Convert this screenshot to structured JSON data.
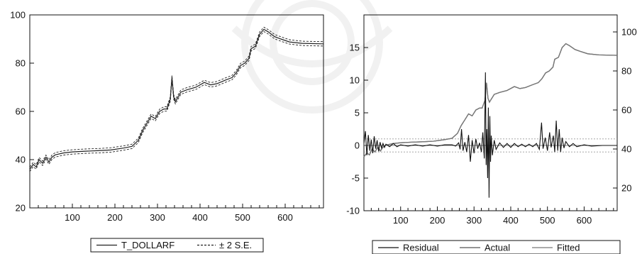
{
  "chart_data": [
    {
      "type": "line",
      "xlim": [
        0,
        690
      ],
      "ylim": [
        20,
        100
      ],
      "x_ticks": [
        100,
        200,
        300,
        400,
        500,
        600
      ],
      "y_ticks": [
        20,
        40,
        60,
        80,
        100
      ],
      "legend_position": "bottom-center",
      "series": [
        {
          "name": "T_DOLLARF",
          "style": "solid",
          "color": "#222222",
          "points": [
            [
              0,
              36
            ],
            [
              8,
              38
            ],
            [
              15,
              37
            ],
            [
              22,
              40
            ],
            [
              30,
              38.5
            ],
            [
              38,
              41
            ],
            [
              45,
              39
            ],
            [
              52,
              41
            ],
            [
              60,
              42
            ],
            [
              80,
              42.8
            ],
            [
              100,
              43.2
            ],
            [
              130,
              43.5
            ],
            [
              160,
              43.7
            ],
            [
              190,
              44
            ],
            [
              220,
              44.8
            ],
            [
              240,
              45.5
            ],
            [
              255,
              48
            ],
            [
              265,
              52
            ],
            [
              275,
              55
            ],
            [
              285,
              58
            ],
            [
              295,
              57
            ],
            [
              305,
              60
            ],
            [
              315,
              61
            ],
            [
              322,
              61
            ],
            [
              330,
              65
            ],
            [
              334,
              74
            ],
            [
              338,
              66
            ],
            [
              342,
              64
            ],
            [
              355,
              68
            ],
            [
              370,
              69
            ],
            [
              390,
              70
            ],
            [
              410,
              72
            ],
            [
              425,
              71
            ],
            [
              440,
              71.5
            ],
            [
              460,
              73
            ],
            [
              475,
              74
            ],
            [
              485,
              76
            ],
            [
              495,
              79
            ],
            [
              505,
              80
            ],
            [
              515,
              82
            ],
            [
              520,
              86
            ],
            [
              530,
              87
            ],
            [
              540,
              92
            ],
            [
              550,
              94
            ],
            [
              560,
              93
            ],
            [
              575,
              91
            ],
            [
              590,
              90
            ],
            [
              610,
              88.8
            ],
            [
              640,
              88.2
            ],
            [
              690,
              88
            ]
          ]
        },
        {
          "name": "± 2 S.E.",
          "style": "dashed",
          "color": "#222222",
          "band": 0.9
        }
      ],
      "legend": [
        "T_DOLLARF",
        "± 2 S.E."
      ]
    },
    {
      "type": "line",
      "xlim": [
        0,
        690
      ],
      "left_axis": {
        "ylim": [
          -10,
          20
        ],
        "ticks": [
          -10,
          -5,
          0,
          5,
          10,
          15
        ]
      },
      "right_axis": {
        "ylim": [
          0,
          100
        ],
        "ticks": [
          20,
          40,
          60,
          80,
          100
        ]
      },
      "x_ticks": [
        100,
        200,
        300,
        400,
        500,
        600
      ],
      "legend_position": "bottom-center",
      "reference_lines_left": [
        0,
        1,
        -1
      ],
      "series": [
        {
          "name": "Actual",
          "axis": "right",
          "color": "#555555",
          "points": [
            [
              0,
              36
            ],
            [
              8,
              38
            ],
            [
              15,
              37
            ],
            [
              22,
              40
            ],
            [
              30,
              38.5
            ],
            [
              38,
              41
            ],
            [
              45,
              39
            ],
            [
              52,
              41
            ],
            [
              60,
              42
            ],
            [
              80,
              42.8
            ],
            [
              100,
              43.2
            ],
            [
              130,
              43.5
            ],
            [
              160,
              43.7
            ],
            [
              190,
              44
            ],
            [
              220,
              44.8
            ],
            [
              240,
              45.5
            ],
            [
              255,
              48
            ],
            [
              265,
              52
            ],
            [
              275,
              55
            ],
            [
              285,
              58
            ],
            [
              295,
              57
            ],
            [
              305,
              60
            ],
            [
              315,
              61
            ],
            [
              322,
              61
            ],
            [
              330,
              65
            ],
            [
              334,
              74
            ],
            [
              338,
              66
            ],
            [
              342,
              64
            ],
            [
              355,
              68
            ],
            [
              370,
              69
            ],
            [
              390,
              70
            ],
            [
              410,
              72
            ],
            [
              425,
              71
            ],
            [
              440,
              71.5
            ],
            [
              460,
              73
            ],
            [
              475,
              74
            ],
            [
              485,
              76
            ],
            [
              495,
              79
            ],
            [
              505,
              80
            ],
            [
              515,
              82
            ],
            [
              520,
              86
            ],
            [
              530,
              87
            ],
            [
              540,
              92
            ],
            [
              550,
              94
            ],
            [
              560,
              93
            ],
            [
              575,
              91
            ],
            [
              590,
              90
            ],
            [
              610,
              88.8
            ],
            [
              640,
              88.2
            ],
            [
              690,
              88
            ]
          ]
        },
        {
          "name": "Fitted",
          "axis": "right",
          "color": "#777777",
          "points": [
            [
              0,
              36
            ],
            [
              8,
              38
            ],
            [
              15,
              37
            ],
            [
              22,
              40
            ],
            [
              30,
              38.5
            ],
            [
              38,
              41
            ],
            [
              45,
              39
            ],
            [
              52,
              41
            ],
            [
              60,
              42
            ],
            [
              80,
              42.8
            ],
            [
              100,
              43.2
            ],
            [
              130,
              43.5
            ],
            [
              160,
              43.7
            ],
            [
              190,
              44
            ],
            [
              220,
              44.8
            ],
            [
              240,
              45.5
            ],
            [
              255,
              48
            ],
            [
              265,
              52
            ],
            [
              275,
              55
            ],
            [
              285,
              58
            ],
            [
              295,
              57
            ],
            [
              305,
              60
            ],
            [
              315,
              61
            ],
            [
              322,
              61
            ],
            [
              330,
              65
            ],
            [
              334,
              74
            ],
            [
              338,
              66
            ],
            [
              342,
              64
            ],
            [
              355,
              68
            ],
            [
              370,
              69
            ],
            [
              390,
              70
            ],
            [
              410,
              72
            ],
            [
              425,
              71
            ],
            [
              440,
              71.5
            ],
            [
              460,
              73
            ],
            [
              475,
              74
            ],
            [
              485,
              76
            ],
            [
              495,
              79
            ],
            [
              505,
              80
            ],
            [
              515,
              82
            ],
            [
              520,
              86
            ],
            [
              530,
              87
            ],
            [
              540,
              92
            ],
            [
              550,
              94
            ],
            [
              560,
              93
            ],
            [
              575,
              91
            ],
            [
              590,
              90
            ],
            [
              610,
              88.8
            ],
            [
              640,
              88.2
            ],
            [
              690,
              88
            ]
          ]
        },
        {
          "name": "Residual",
          "axis": "left",
          "color": "#111111",
          "points": [
            [
              0,
              0.3
            ],
            [
              4,
              2.2
            ],
            [
              8,
              -1.5
            ],
            [
              12,
              1.6
            ],
            [
              16,
              -0.8
            ],
            [
              20,
              0.9
            ],
            [
              24,
              -1.2
            ],
            [
              28,
              1.4
            ],
            [
              32,
              -0.5
            ],
            [
              36,
              0.8
            ],
            [
              40,
              -0.9
            ],
            [
              44,
              0.5
            ],
            [
              48,
              -0.4
            ],
            [
              52,
              0.3
            ],
            [
              56,
              -0.3
            ],
            [
              60,
              0.2
            ],
            [
              70,
              -0.2
            ],
            [
              80,
              0.3
            ],
            [
              90,
              -0.2
            ],
            [
              100,
              0.1
            ],
            [
              120,
              -0.1
            ],
            [
              140,
              0.1
            ],
            [
              160,
              -0.1
            ],
            [
              180,
              0.1
            ],
            [
              200,
              -0.1
            ],
            [
              220,
              0.1
            ],
            [
              240,
              0.1
            ],
            [
              250,
              -0.1
            ],
            [
              258,
              0.4
            ],
            [
              262,
              -0.6
            ],
            [
              266,
              2.5
            ],
            [
              270,
              -0.8
            ],
            [
              275,
              0.5
            ],
            [
              280,
              -1.0
            ],
            [
              285,
              1.6
            ],
            [
              290,
              -2.5
            ],
            [
              295,
              0.8
            ],
            [
              300,
              -1.2
            ],
            [
              305,
              1.0
            ],
            [
              310,
              -0.5
            ],
            [
              315,
              0.4
            ],
            [
              320,
              -1.0
            ],
            [
              324,
              2.0
            ],
            [
              328,
              -2.0
            ],
            [
              331,
              11.2
            ],
            [
              333,
              -3.0
            ],
            [
              335,
              2.5
            ],
            [
              337,
              -5.0
            ],
            [
              339,
              5.8
            ],
            [
              341,
              -8.0
            ],
            [
              343,
              4.5
            ],
            [
              345,
              -2.5
            ],
            [
              347,
              1.5
            ],
            [
              350,
              -1.5
            ],
            [
              355,
              0.8
            ],
            [
              360,
              -0.6
            ],
            [
              370,
              0.4
            ],
            [
              380,
              -0.3
            ],
            [
              390,
              0.3
            ],
            [
              400,
              -0.3
            ],
            [
              410,
              0.3
            ],
            [
              420,
              -0.2
            ],
            [
              430,
              0.2
            ],
            [
              440,
              -0.2
            ],
            [
              450,
              0.2
            ],
            [
              460,
              -0.2
            ],
            [
              470,
              0.3
            ],
            [
              478,
              -0.6
            ],
            [
              484,
              3.5
            ],
            [
              488,
              -0.5
            ],
            [
              494,
              1.2
            ],
            [
              500,
              -0.8
            ],
            [
              506,
              2.0
            ],
            [
              510,
              -0.3
            ],
            [
              516,
              1.5
            ],
            [
              520,
              -1.0
            ],
            [
              524,
              3.8
            ],
            [
              528,
              -0.8
            ],
            [
              532,
              2.5
            ],
            [
              536,
              -1.0
            ],
            [
              540,
              1.2
            ],
            [
              545,
              -0.4
            ],
            [
              550,
              0.6
            ],
            [
              560,
              -0.2
            ],
            [
              570,
              0.3
            ],
            [
              580,
              -0.2
            ],
            [
              600,
              0.1
            ],
            [
              620,
              -0.1
            ],
            [
              650,
              0.0
            ],
            [
              690,
              0.0
            ]
          ]
        }
      ],
      "legend": [
        "Residual",
        "Actual",
        "Fitted"
      ]
    }
  ]
}
